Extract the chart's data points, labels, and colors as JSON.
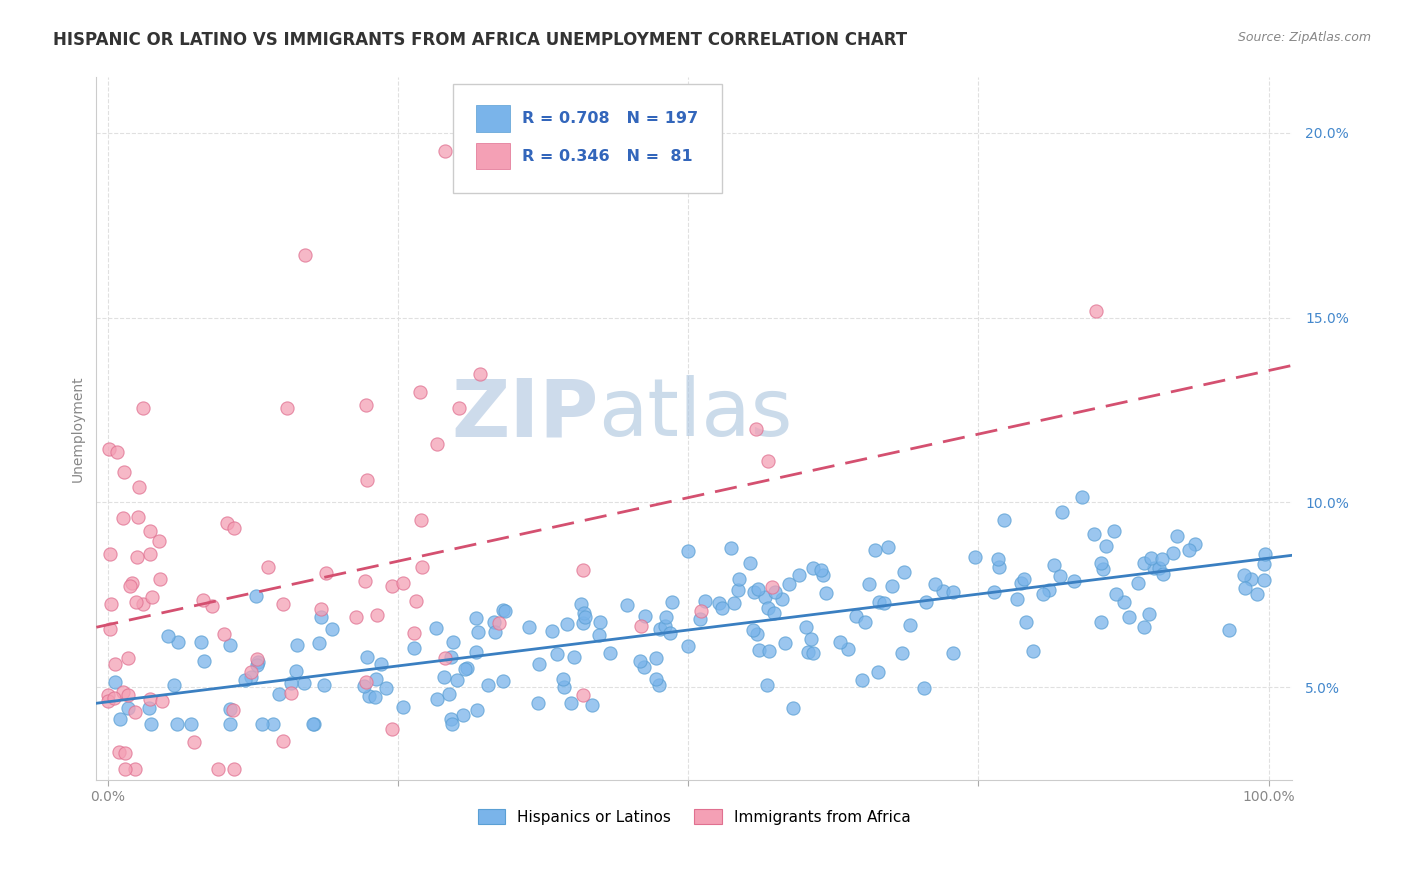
{
  "title": "HISPANIC OR LATINO VS IMMIGRANTS FROM AFRICA UNEMPLOYMENT CORRELATION CHART",
  "source": "Source: ZipAtlas.com",
  "ylabel": "Unemployment",
  "xlim": [
    -0.01,
    1.02
  ],
  "ylim": [
    0.025,
    0.215
  ],
  "x_ticks": [
    0.0,
    0.25,
    0.5,
    0.75,
    1.0
  ],
  "x_tick_labels": [
    "0.0%",
    "",
    "",
    "",
    "100.0%"
  ],
  "y_ticks": [
    0.05,
    0.1,
    0.15,
    0.2
  ],
  "y_tick_labels": [
    "5.0%",
    "10.0%",
    "15.0%",
    "20.0%"
  ],
  "series1_color": "#7ab4ea",
  "series2_color": "#f4a0b5",
  "series1_edge": "#5a9fd4",
  "series2_edge": "#e07090",
  "trend1_color": "#3a7fc1",
  "trend2_color": "#d45070",
  "background_color": "#ffffff",
  "grid_color": "#e0e0e0",
  "title_fontsize": 12,
  "label_fontsize": 10,
  "tick_fontsize": 10,
  "series1_label": "Hispanics or Latinos",
  "series2_label": "Immigrants from Africa",
  "series1_R": 0.708,
  "series1_N": 197,
  "series2_R": 0.346,
  "series2_N": 81,
  "legend_color_r": "#3366bb",
  "legend_color_n": "#cc3333",
  "wm_zip_color": "#d0d8e8",
  "wm_atlas_color": "#b8cce0",
  "rand_seed1": 42,
  "rand_seed2": 77
}
